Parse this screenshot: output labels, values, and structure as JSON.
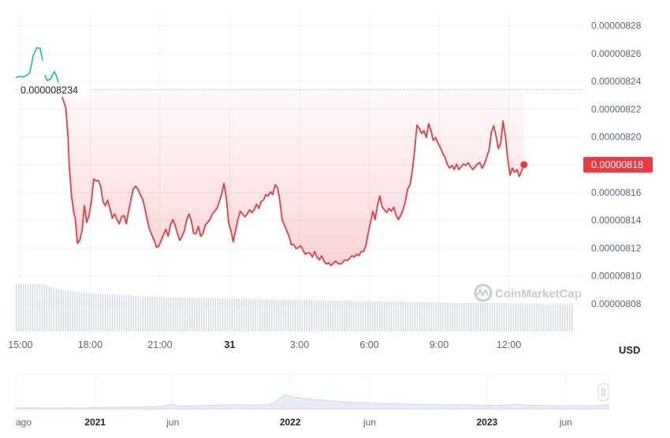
{
  "chart_data": {
    "type": "line",
    "title": "",
    "unit_label": "USD",
    "watermark": "CoinMarketCap",
    "reference_price": 8.234e-06,
    "reference_label": "0.000008234",
    "current_price": 8.18e-06,
    "current_label": "0.00000818",
    "y_ticks": [
      "0.00000828",
      "0.00000826",
      "0.00000824",
      "0.00000822",
      "0.00000820",
      "0.00000818",
      "0.00000816",
      "0.00000814",
      "0.00000812",
      "0.00000810",
      "0.00000808"
    ],
    "ylim": [
      8.06e-06,
      8.29e-06
    ],
    "x_ticks": [
      {
        "label": "15:00",
        "t": 0,
        "bold": false
      },
      {
        "label": "18:00",
        "t": 3,
        "bold": false
      },
      {
        "label": "21:00",
        "t": 6,
        "bold": false
      },
      {
        "label": "31",
        "t": 9,
        "bold": true
      },
      {
        "label": "3:00",
        "t": 12,
        "bold": false
      },
      {
        "label": "6:00",
        "t": 15,
        "bold": false
      },
      {
        "label": "9:00",
        "t": 18,
        "bold": false
      },
      {
        "label": "12:00",
        "t": 21,
        "bold": false
      }
    ],
    "xlim": [
      -0.2,
      24.2
    ],
    "colors": {
      "up": "#16c784",
      "down": "#ea3943",
      "grid": "#eff2f5",
      "volume": "#cfd6e4"
    },
    "price_series": [
      [
        -0.2,
        8.2426
      ],
      [
        -0.05,
        8.2436
      ],
      [
        0.1,
        8.2431
      ],
      [
        0.25,
        8.2441
      ],
      [
        0.4,
        8.246
      ],
      [
        0.55,
        8.2585
      ],
      [
        0.7,
        8.2642
      ],
      [
        0.85,
        8.2638
      ],
      [
        0.95,
        8.255
      ],
      [
        1.05,
        8.2445
      ],
      [
        1.15,
        8.2405
      ],
      [
        1.3,
        8.2418
      ],
      [
        1.45,
        8.247
      ],
      [
        1.55,
        8.244
      ],
      [
        1.65,
        8.238
      ],
      [
        1.75,
        8.231
      ],
      [
        1.85,
        8.226
      ],
      [
        1.95,
        8.221
      ],
      [
        2.05,
        8.199
      ],
      [
        2.1,
        8.179
      ],
      [
        2.2,
        8.157
      ],
      [
        2.3,
        8.145
      ],
      [
        2.35,
        8.1422
      ],
      [
        2.45,
        8.1235
      ],
      [
        2.55,
        8.1255
      ],
      [
        2.65,
        8.1325
      ],
      [
        2.75,
        8.1505
      ],
      [
        2.85,
        8.1385
      ],
      [
        2.95,
        8.1435
      ],
      [
        3.05,
        8.1535
      ],
      [
        3.15,
        8.1695
      ],
      [
        3.25,
        8.1685
      ],
      [
        3.35,
        8.1685
      ],
      [
        3.45,
        8.1645
      ],
      [
        3.55,
        8.1535
      ],
      [
        3.65,
        8.1505
      ],
      [
        3.75,
        8.1545
      ],
      [
        3.85,
        8.1485
      ],
      [
        3.95,
        8.1415
      ],
      [
        4.05,
        8.1445
      ],
      [
        4.15,
        8.1405
      ],
      [
        4.25,
        8.1375
      ],
      [
        4.35,
        8.1425
      ],
      [
        4.45,
        8.1435
      ],
      [
        4.55,
        8.1375
      ],
      [
        4.65,
        8.1465
      ],
      [
        4.75,
        8.1545
      ],
      [
        4.85,
        8.1625
      ],
      [
        4.95,
        8.1645
      ],
      [
        5.05,
        8.1625
      ],
      [
        5.15,
        8.1585
      ],
      [
        5.25,
        8.1555
      ],
      [
        5.35,
        8.1485
      ],
      [
        5.45,
        8.1405
      ],
      [
        5.55,
        8.1335
      ],
      [
        5.65,
        8.1295
      ],
      [
        5.75,
        8.1255
      ],
      [
        5.85,
        8.1205
      ],
      [
        5.95,
        8.1215
      ],
      [
        6.05,
        8.1255
      ],
      [
        6.15,
        8.1295
      ],
      [
        6.25,
        8.1335
      ],
      [
        6.35,
        8.1285
      ],
      [
        6.45,
        8.1365
      ],
      [
        6.55,
        8.1405
      ],
      [
        6.65,
        8.1365
      ],
      [
        6.75,
        8.1305
      ],
      [
        6.85,
        8.1255
      ],
      [
        6.95,
        8.1285
      ],
      [
        7.05,
        8.1325
      ],
      [
        7.15,
        8.1405
      ],
      [
        7.25,
        8.1445
      ],
      [
        7.35,
        8.1395
      ],
      [
        7.45,
        8.1305
      ],
      [
        7.55,
        8.1305
      ],
      [
        7.65,
        8.1355
      ],
      [
        7.75,
        8.1285
      ],
      [
        7.85,
        8.1305
      ],
      [
        7.95,
        8.1365
      ],
      [
        8.05,
        8.1385
      ],
      [
        8.15,
        8.1405
      ],
      [
        8.25,
        8.1445
      ],
      [
        8.35,
        8.1465
      ],
      [
        8.45,
        8.1485
      ],
      [
        8.55,
        8.1535
      ],
      [
        8.65,
        8.1585
      ],
      [
        8.75,
        8.1665
      ],
      [
        8.85,
        8.1565
      ],
      [
        8.95,
        8.1385
      ],
      [
        9.05,
        8.1325
      ],
      [
        9.15,
        8.1245
      ],
      [
        9.25,
        8.1325
      ],
      [
        9.35,
        8.1405
      ],
      [
        9.45,
        8.1465
      ],
      [
        9.55,
        8.1445
      ],
      [
        9.65,
        8.1425
      ],
      [
        9.75,
        8.1445
      ],
      [
        9.85,
        8.1475
      ],
      [
        9.95,
        8.1455
      ],
      [
        10.05,
        8.1475
      ],
      [
        10.15,
        8.1515
      ],
      [
        10.25,
        8.1485
      ],
      [
        10.35,
        8.1535
      ],
      [
        10.45,
        8.1545
      ],
      [
        10.55,
        8.1585
      ],
      [
        10.65,
        8.1575
      ],
      [
        10.75,
        8.1605
      ],
      [
        10.85,
        8.1585
      ],
      [
        10.95,
        8.1655
      ],
      [
        11.05,
        8.1635
      ],
      [
        11.15,
        8.1545
      ],
      [
        11.25,
        8.1405
      ],
      [
        11.35,
        8.1365
      ],
      [
        11.45,
        8.1325
      ],
      [
        11.55,
        8.1285
      ],
      [
        11.65,
        8.1225
      ],
      [
        11.75,
        8.1225
      ],
      [
        11.85,
        8.1195
      ],
      [
        11.95,
        8.1205
      ],
      [
        12.05,
        8.1215
      ],
      [
        12.15,
        8.1185
      ],
      [
        12.25,
        8.1155
      ],
      [
        12.35,
        8.1165
      ],
      [
        12.45,
        8.1165
      ],
      [
        12.55,
        8.1135
      ],
      [
        12.65,
        8.1175
      ],
      [
        12.75,
        8.1135
      ],
      [
        12.85,
        8.1115
      ],
      [
        12.95,
        8.1145
      ],
      [
        13.05,
        8.1105
      ],
      [
        13.15,
        8.1085
      ],
      [
        13.25,
        8.1095
      ],
      [
        13.35,
        8.1075
      ],
      [
        13.45,
        8.109
      ],
      [
        13.55,
        8.1105
      ],
      [
        13.65,
        8.109
      ],
      [
        13.75,
        8.1085
      ],
      [
        13.85,
        8.1095
      ],
      [
        13.95,
        8.1115
      ],
      [
        14.05,
        8.111
      ],
      [
        14.15,
        8.1125
      ],
      [
        14.25,
        8.1145
      ],
      [
        14.35,
        8.1135
      ],
      [
        14.45,
        8.1155
      ],
      [
        14.55,
        8.1145
      ],
      [
        14.65,
        8.1175
      ],
      [
        14.75,
        8.1175
      ],
      [
        14.85,
        8.1215
      ],
      [
        14.95,
        8.1305
      ],
      [
        15.05,
        8.1385
      ],
      [
        15.15,
        8.1465
      ],
      [
        15.25,
        8.1405
      ],
      [
        15.35,
        8.1505
      ],
      [
        15.45,
        8.1575
      ],
      [
        15.55,
        8.1495
      ],
      [
        15.65,
        8.1475
      ],
      [
        15.75,
        8.1455
      ],
      [
        15.85,
        8.1485
      ],
      [
        15.95,
        8.1465
      ],
      [
        16.05,
        8.1495
      ],
      [
        16.15,
        8.1435
      ],
      [
        16.25,
        8.1405
      ],
      [
        16.35,
        8.1435
      ],
      [
        16.45,
        8.1475
      ],
      [
        16.55,
        8.1535
      ],
      [
        16.65,
        8.1625
      ],
      [
        16.75,
        8.1655
      ],
      [
        16.85,
        8.1755
      ],
      [
        16.95,
        8.1905
      ],
      [
        17.05,
        8.2085
      ],
      [
        17.15,
        8.206
      ],
      [
        17.25,
        8.2025
      ],
      [
        17.35,
        8.2045
      ],
      [
        17.45,
        8.1995
      ],
      [
        17.55,
        8.2095
      ],
      [
        17.65,
        8.2045
      ],
      [
        17.75,
        8.1975
      ],
      [
        17.85,
        8.1995
      ],
      [
        17.95,
        8.1955
      ],
      [
        18.05,
        8.1925
      ],
      [
        18.15,
        8.1885
      ],
      [
        18.25,
        8.1855
      ],
      [
        18.35,
        8.1805
      ],
      [
        18.45,
        8.1775
      ],
      [
        18.55,
        8.1795
      ],
      [
        18.65,
        8.1765
      ],
      [
        18.75,
        8.1805
      ],
      [
        18.85,
        8.1765
      ],
      [
        18.95,
        8.1785
      ],
      [
        19.05,
        8.1805
      ],
      [
        19.15,
        8.1795
      ],
      [
        19.25,
        8.1815
      ],
      [
        19.35,
        8.1785
      ],
      [
        19.45,
        8.1765
      ],
      [
        19.55,
        8.1785
      ],
      [
        19.65,
        8.1805
      ],
      [
        19.75,
        8.1815
      ],
      [
        19.85,
        8.1775
      ],
      [
        19.95,
        8.1805
      ],
      [
        20.05,
        8.1855
      ],
      [
        20.15,
        8.1905
      ],
      [
        20.25,
        8.2035
      ],
      [
        20.35,
        8.208
      ],
      [
        20.45,
        8.2005
      ],
      [
        20.55,
        8.1915
      ],
      [
        20.65,
        8.1955
      ],
      [
        20.75,
        8.2115
      ],
      [
        20.85,
        8.2005
      ],
      [
        20.95,
        8.1845
      ],
      [
        21.05,
        8.1725
      ],
      [
        21.15,
        8.1775
      ],
      [
        21.25,
        8.1745
      ],
      [
        21.35,
        8.1765
      ],
      [
        21.45,
        8.1715
      ],
      [
        21.55,
        8.1755
      ],
      [
        21.65,
        8.1805
      ]
    ],
    "volume_bars": [
      1.0,
      1.0,
      1.0,
      1.0,
      1.0,
      1.0,
      1.0,
      1.0,
      1.0,
      1.0,
      1.0,
      1.0,
      0.99,
      0.97,
      0.95,
      0.94,
      0.92,
      0.91,
      0.9,
      0.89,
      0.88,
      0.87,
      0.86,
      0.85,
      0.85,
      0.84,
      0.83,
      0.83,
      0.82,
      0.82,
      0.81,
      0.81,
      0.81,
      0.8,
      0.8,
      0.8,
      0.79,
      0.79,
      0.79,
      0.78,
      0.78,
      0.78,
      0.77,
      0.77,
      0.77,
      0.77,
      0.76,
      0.76,
      0.76,
      0.76,
      0.75,
      0.75,
      0.75,
      0.75,
      0.75,
      0.74,
      0.74,
      0.74,
      0.74,
      0.74,
      0.74,
      0.73,
      0.73,
      0.73,
      0.73,
      0.73,
      0.73,
      0.72,
      0.72,
      0.72,
      0.72,
      0.72,
      0.72,
      0.72,
      0.71,
      0.71,
      0.71,
      0.71,
      0.71,
      0.71,
      0.71,
      0.71,
      0.7,
      0.7,
      0.7,
      0.7,
      0.7,
      0.7,
      0.7,
      0.7,
      0.7,
      0.69,
      0.69,
      0.69,
      0.69,
      0.69,
      0.69,
      0.69,
      0.69,
      0.69,
      0.68,
      0.68,
      0.68,
      0.68,
      0.68,
      0.68,
      0.68,
      0.68,
      0.68,
      0.68,
      0.67,
      0.67,
      0.67,
      0.67,
      0.67,
      0.67,
      0.67,
      0.67,
      0.67,
      0.67,
      0.67,
      0.66,
      0.66,
      0.66,
      0.66,
      0.66,
      0.66,
      0.66,
      0.66,
      0.66,
      0.66,
      0.66,
      0.65,
      0.65,
      0.65,
      0.65,
      0.65,
      0.65,
      0.65,
      0.65,
      0.65,
      0.65,
      0.65,
      0.65,
      0.64,
      0.64,
      0.64,
      0.64,
      0.64,
      0.64,
      0.64,
      0.64,
      0.64,
      0.64,
      0.64,
      0.64,
      0.63,
      0.63,
      0.63,
      0.63,
      0.63,
      0.63,
      0.63,
      0.63,
      0.63,
      0.63,
      0.63,
      0.63,
      0.62,
      0.62,
      0.62,
      0.62,
      0.62,
      0.62,
      0.62,
      0.62,
      0.62,
      0.62,
      0.62,
      0.61,
      0.61,
      0.61,
      0.61,
      0.61,
      0.61,
      0.61,
      0.61,
      0.61,
      0.6,
      0.6,
      0.6,
      0.6,
      0.6,
      0.6,
      0.6,
      0.6,
      0.6,
      0.6,
      0.6,
      0.6,
      0.59,
      0.59,
      0.59,
      0.59,
      0.59,
      0.59,
      0.59,
      0.59,
      0.59,
      0.59,
      0.59,
      0.59,
      0.58,
      0.58,
      0.58,
      0.58,
      0.58,
      0.58,
      0.58,
      0.58,
      0.58,
      0.58,
      0.58,
      0.58,
      0.58,
      0.57,
      0.57,
      0.57,
      0.57,
      0.57,
      0.57,
      0.57,
      0.57,
      0.57,
      0.57,
      0.57,
      0.57,
      0.57
    ],
    "navigator": {
      "ticks": [
        {
          "label": "ago",
          "pos": 0.0,
          "bold": false
        },
        {
          "label": "2021",
          "pos": 0.134,
          "bold": true
        },
        {
          "label": "jun",
          "pos": 0.265,
          "bold": false
        },
        {
          "label": "2022",
          "pos": 0.463,
          "bold": true
        },
        {
          "label": "jun",
          "pos": 0.597,
          "bold": false
        },
        {
          "label": "2023",
          "pos": 0.795,
          "bold": true
        },
        {
          "label": "jun",
          "pos": 0.928,
          "bold": false
        }
      ],
      "series": [
        0.05,
        0.05,
        0.05,
        0.05,
        0.05,
        0.05,
        0.05,
        0.05,
        0.05,
        0.05,
        0.06,
        0.06,
        0.06,
        0.07,
        0.07,
        0.08,
        0.08,
        0.08,
        0.09,
        0.1,
        0.1,
        0.1,
        0.11,
        0.12,
        0.14,
        0.18,
        0.26,
        0.18,
        0.14,
        0.16,
        0.17,
        0.18,
        0.19,
        0.2,
        0.22,
        0.21,
        0.22,
        0.23,
        0.22,
        0.21,
        0.2,
        0.22,
        0.24,
        0.3,
        0.55,
        0.8,
        0.68,
        0.62,
        0.58,
        0.55,
        0.5,
        0.48,
        0.45,
        0.42,
        0.4,
        0.38,
        0.36,
        0.34,
        0.35,
        0.33,
        0.31,
        0.3,
        0.29,
        0.28,
        0.27,
        0.26,
        0.25,
        0.25,
        0.24,
        0.24,
        0.23,
        0.23,
        0.22,
        0.23,
        0.22,
        0.24,
        0.22,
        0.21,
        0.2,
        0.2,
        0.19,
        0.2,
        0.2,
        0.22,
        0.25,
        0.21,
        0.2,
        0.19,
        0.19,
        0.18,
        0.18,
        0.17,
        0.17,
        0.18,
        0.18,
        0.17,
        0.17,
        0.18,
        0.2,
        0.22
      ]
    }
  }
}
